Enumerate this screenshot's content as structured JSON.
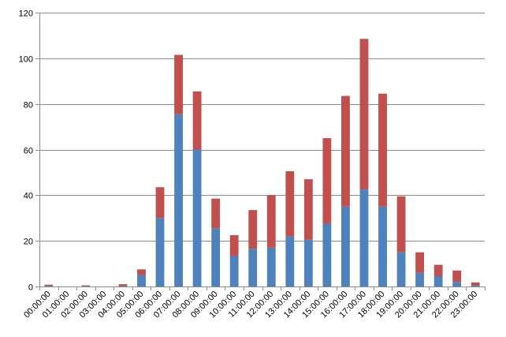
{
  "chart_data": {
    "type": "bar",
    "stacked": true,
    "title": "",
    "xlabel": "",
    "ylabel": "",
    "legend": "none",
    "grid": true,
    "ylim": [
      0,
      120
    ],
    "yticks": [
      "0",
      "20",
      "40",
      "60",
      "80",
      "100",
      "120"
    ],
    "categories": [
      "00:00:00",
      "01:00:00",
      "02:00:00",
      "03:00:00",
      "04:00:00",
      "05:00:00",
      "06:00:00",
      "07:00:00",
      "08:00:00",
      "09:00:00",
      "10:00:00",
      "11:00:00",
      "12:00:00",
      "13:00:00",
      "14:00:00",
      "15:00:00",
      "16:00:00",
      "17:00:00",
      "18:00:00",
      "19:00:00",
      "20:00:00",
      "21:00:00",
      "22:00:00",
      "23:00:00"
    ],
    "series": [
      {
        "color": "#4f81bd",
        "values": [
          0.3,
          0,
          0.2,
          0,
          0.2,
          5,
          30,
          75.5,
          60,
          25.5,
          13.5,
          16.5,
          17,
          22,
          20.5,
          27.5,
          35,
          42.5,
          35,
          15,
          6,
          4.5,
          2,
          0.5
        ]
      },
      {
        "color": "#c0504d",
        "values": [
          0.5,
          0,
          0.3,
          0,
          0.8,
          2.5,
          13.5,
          26,
          25.5,
          13,
          9,
          17,
          23,
          28.5,
          26.5,
          37.5,
          48.5,
          66,
          49.5,
          24.5,
          9,
          5,
          5,
          1.3
        ]
      }
    ]
  }
}
